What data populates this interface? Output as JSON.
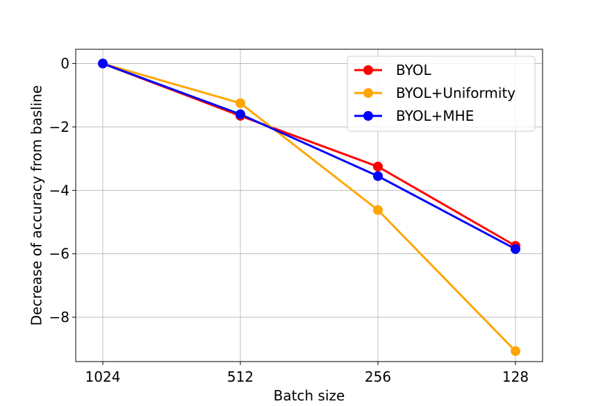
{
  "chart_data": {
    "type": "line",
    "xlabel": "Batch size",
    "ylabel": "Decrease of accuracy from basline",
    "categories": [
      "1024",
      "512",
      "256",
      "128"
    ],
    "ylim": [
      -9.4,
      0.45
    ],
    "yticks": [
      0,
      -2,
      -4,
      -6,
      -8
    ],
    "ytick_labels": [
      "0",
      "−2",
      "−4",
      "−6",
      "−8"
    ],
    "grid": true,
    "legend_position": "top-right",
    "series": [
      {
        "name": "BYOL",
        "color": "#ff0000",
        "values": [
          0,
          -1.65,
          -3.25,
          -5.75
        ]
      },
      {
        "name": "BYOL+Uniformity",
        "color": "#ffa500",
        "values": [
          0,
          -1.25,
          -4.62,
          -9.07
        ]
      },
      {
        "name": "BYOL+MHE",
        "color": "#0000ff",
        "values": [
          0,
          -1.6,
          -3.55,
          -5.85
        ]
      }
    ]
  }
}
